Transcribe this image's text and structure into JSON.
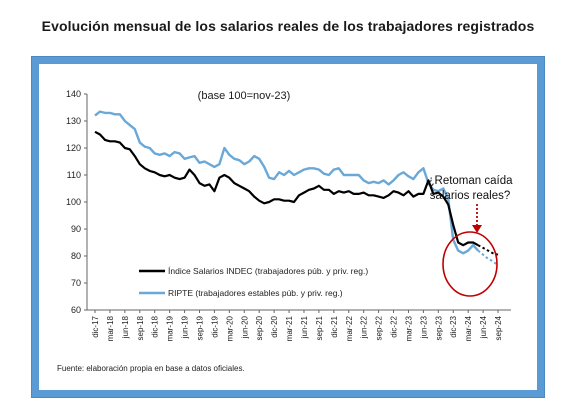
{
  "page": {
    "title": "Evolución mensual de los salarios reales de los trabajadores registrados",
    "frame_color": "#5b9bd5"
  },
  "chart_data": {
    "type": "line",
    "title": "Evolución mensual de los salarios reales de los trabajadores registrados",
    "subtitle": "(base 100=nov-23)",
    "xlabel": "",
    "ylabel": "",
    "ylim": [
      60,
      140
    ],
    "yticks": [
      60,
      70,
      80,
      90,
      100,
      110,
      120,
      130,
      140
    ],
    "xticks": [
      "dic-17",
      "mar-18",
      "jun-18",
      "sep-18",
      "dic-18",
      "mar-19",
      "jun-19",
      "sep-19",
      "dic-19",
      "mar-20",
      "jun-20",
      "sep-20",
      "dic-20",
      "mar-21",
      "jun-21",
      "sep-21",
      "dic-21",
      "mar-22",
      "jun-22",
      "sep-22",
      "dic-22",
      "mar-23",
      "jun-23",
      "sep-23",
      "dic-23",
      "mar-24",
      "jun-24",
      "sep-24"
    ],
    "grid": false,
    "legend_position": "bottom-left",
    "source": "Fuente: elaboración propia en base a datos oficiales.",
    "annotation": {
      "text_lines": [
        "¿Retoman caída",
        "salarios reales?"
      ],
      "arrow_color": "#c00000",
      "circle_color": "#c00000"
    },
    "series": [
      {
        "name": "Índice Salarios INDEC (trabajadores púb. y priv. reg.)",
        "color": "#000000",
        "style": "solid",
        "values": [
          126,
          125,
          123,
          122.5,
          122.5,
          122,
          120,
          119.5,
          117,
          114,
          112.5,
          111.5,
          111,
          110,
          109.5,
          110,
          109,
          108.5,
          109,
          112,
          110,
          107,
          106,
          106.5,
          104,
          109,
          110,
          109,
          107,
          106,
          105,
          104,
          102,
          100.5,
          99.5,
          100,
          101,
          101,
          100.5,
          100.5,
          100,
          102.5,
          103.5,
          104.5,
          105,
          106,
          104.5,
          104.5,
          103,
          104,
          103.5,
          104,
          103,
          103,
          103.5,
          102.5,
          102.5,
          102,
          101.5,
          102.5,
          104,
          103.5,
          102.5,
          104,
          102,
          103,
          103,
          108,
          103,
          103.5,
          102,
          99,
          91.5,
          85,
          84,
          85,
          85,
          84
        ],
        "projection": [
          null,
          null,
          null,
          null,
          null,
          null,
          null,
          null,
          null,
          null,
          null,
          null,
          null,
          null,
          null,
          null,
          null,
          null,
          null,
          null,
          null,
          null,
          null,
          null,
          null,
          null,
          null,
          null,
          null,
          null,
          null,
          null,
          null,
          null,
          null,
          null,
          null,
          null,
          null,
          null,
          null,
          null,
          null,
          null,
          null,
          null,
          null,
          null,
          null,
          null,
          null,
          null,
          null,
          null,
          null,
          null,
          null,
          null,
          null,
          null,
          null,
          null,
          null,
          null,
          null,
          null,
          null,
          null,
          null,
          null,
          null,
          null,
          null,
          null,
          null,
          null,
          null,
          84,
          83,
          82,
          81,
          80.5
        ]
      },
      {
        "name": "RIPTE (trabajadores estables púb. y priv. reg.)",
        "color": "#6aa8d8",
        "style": "solid",
        "values": [
          132,
          133.5,
          133,
          133,
          132.5,
          132.5,
          130,
          128.5,
          127,
          122,
          120.5,
          120,
          118,
          117.5,
          118,
          117,
          118.5,
          118,
          116,
          116.5,
          117,
          114.5,
          115,
          114,
          113,
          114,
          120,
          117.5,
          116,
          115.5,
          114,
          115,
          117,
          116,
          113,
          109,
          108.5,
          111,
          110,
          111.5,
          110,
          111,
          112,
          112.5,
          112.5,
          112,
          110.5,
          110,
          112,
          112.5,
          110,
          110,
          110,
          110,
          108,
          107,
          107.5,
          107,
          108,
          106.5,
          108,
          110,
          111,
          109.5,
          108.5,
          111,
          112.5,
          107,
          104.5,
          104,
          105,
          101,
          86,
          82,
          81,
          82,
          84,
          82
        ],
        "projection": [
          null,
          null,
          null,
          null,
          null,
          null,
          null,
          null,
          null,
          null,
          null,
          null,
          null,
          null,
          null,
          null,
          null,
          null,
          null,
          null,
          null,
          null,
          null,
          null,
          null,
          null,
          null,
          null,
          null,
          null,
          null,
          null,
          null,
          null,
          null,
          null,
          null,
          null,
          null,
          null,
          null,
          null,
          null,
          null,
          null,
          null,
          null,
          null,
          null,
          null,
          null,
          null,
          null,
          null,
          null,
          null,
          null,
          null,
          null,
          null,
          null,
          null,
          null,
          null,
          null,
          null,
          null,
          null,
          null,
          null,
          null,
          null,
          null,
          null,
          null,
          null,
          null,
          82,
          80.5,
          79,
          78,
          76.5
        ]
      }
    ]
  }
}
